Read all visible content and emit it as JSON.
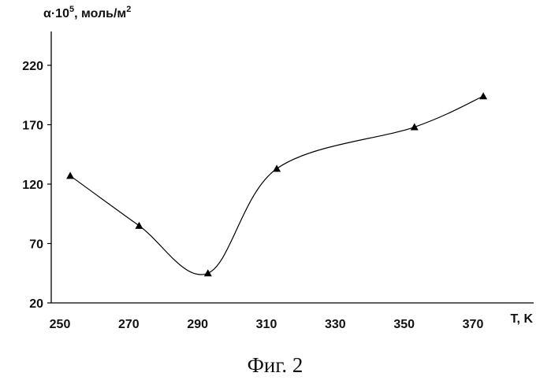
{
  "chart_data": {
    "type": "line",
    "ylabel": "α·10⁵, моль/м²",
    "ylabel_parts": {
      "prefix": "α·10",
      "exp1": "5",
      "mid": ", моль/м",
      "exp2": "2"
    },
    "xlabel": "T, K",
    "x": [
      253,
      273,
      293,
      313,
      353,
      373
    ],
    "y": [
      127,
      85,
      45,
      133,
      168,
      194
    ],
    "xlim": [
      250,
      380
    ],
    "ylim": [
      20,
      245
    ],
    "xticks": [
      250,
      270,
      290,
      310,
      330,
      350,
      370
    ],
    "yticks": [
      20,
      70,
      120,
      170,
      220
    ],
    "grid": false,
    "marker": "triangle",
    "smooth": true,
    "color": "#000000"
  },
  "caption": "Фиг. 2"
}
